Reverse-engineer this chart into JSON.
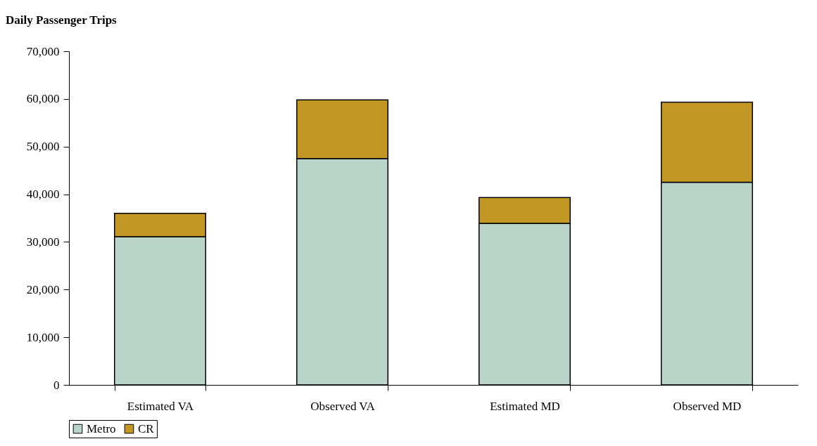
{
  "chart_data": {
    "type": "bar",
    "title": "Daily Passenger Trips",
    "stacked": true,
    "categories": [
      "Estimated VA",
      "Observed VA",
      "Estimated MD",
      "Observed MD"
    ],
    "series": [
      {
        "name": "Metro",
        "color": "#b9d5c9",
        "values": [
          31100,
          47500,
          33900,
          42500
        ]
      },
      {
        "name": "CR",
        "color": "#c29723",
        "values": [
          4900,
          12300,
          5400,
          16800
        ]
      }
    ],
    "ylim": [
      0,
      70000
    ],
    "yticks": [
      {
        "value": 0,
        "label": "0"
      },
      {
        "value": 10000,
        "label": "10,000"
      },
      {
        "value": 20000,
        "label": "20,000"
      },
      {
        "value": 30000,
        "label": "30,000"
      },
      {
        "value": 40000,
        "label": "40,000"
      },
      {
        "value": 50000,
        "label": "50,000"
      },
      {
        "value": 60000,
        "label": "60,000"
      },
      {
        "value": 70000,
        "label": "70,000"
      }
    ],
    "grid": false,
    "legend": "bottom"
  }
}
